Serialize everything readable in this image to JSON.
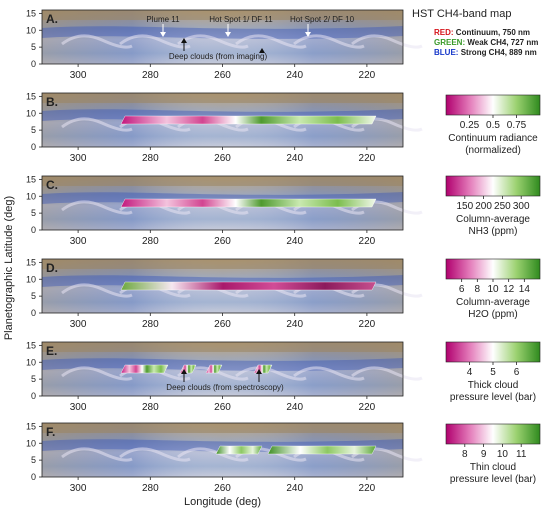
{
  "figure": {
    "y_axis_label": "Planetographic Latitude (deg)",
    "x_axis_label": "Longitude (deg)",
    "lat_ticks": [
      "0",
      "5",
      "10",
      "15"
    ],
    "lon_ticks": [
      "300",
      "280",
      "260",
      "240",
      "220"
    ],
    "panels": [
      {
        "letter": "A.",
        "annotations": [
          "Plume 11",
          "Hot Spot 1/ DF 11",
          "Hot Spot 2/ DF 10",
          "Deep clouds (from imaging)"
        ]
      },
      {
        "letter": "B."
      },
      {
        "letter": "C."
      },
      {
        "letter": "D."
      },
      {
        "letter": "E.",
        "annotations": [
          "Deep clouds (from spectroscopy)"
        ]
      },
      {
        "letter": "F."
      }
    ],
    "map_legend": {
      "title": "HST CH4-band map",
      "items": [
        {
          "channel": "RED:",
          "desc": "Continuum, 750 nm",
          "color": "#d6151b"
        },
        {
          "channel": "GREEN:",
          "desc": "Weak CH4, 727 nm",
          "color": "#3a9a2a"
        },
        {
          "channel": "BLUE:",
          "desc": "Strong CH4, 889 nm",
          "color": "#1637c9"
        }
      ]
    },
    "colorbars": [
      {
        "panel": "B.",
        "ticks": [
          "0.25",
          "0.5",
          "0.75"
        ],
        "label_lines": [
          "Continuum radiance",
          "(normalized)"
        ]
      },
      {
        "panel": "C.",
        "ticks": [
          "150",
          "200",
          "250",
          "300"
        ],
        "label_lines": [
          "Column-average",
          "NH3 (ppm)"
        ]
      },
      {
        "panel": "D.",
        "ticks": [
          "6",
          "8",
          "10",
          "12",
          "14"
        ],
        "label_lines": [
          "Column-average",
          "H2O (ppm)"
        ]
      },
      {
        "panel": "E.",
        "ticks": [
          "4",
          "5",
          "6"
        ],
        "label_lines": [
          "Thick cloud",
          "pressure level (bar)"
        ]
      },
      {
        "panel": "F.",
        "ticks": [
          "8",
          "9",
          "10",
          "11"
        ],
        "label_lines": [
          "Thin cloud",
          "pressure level (bar)"
        ]
      }
    ]
  }
}
